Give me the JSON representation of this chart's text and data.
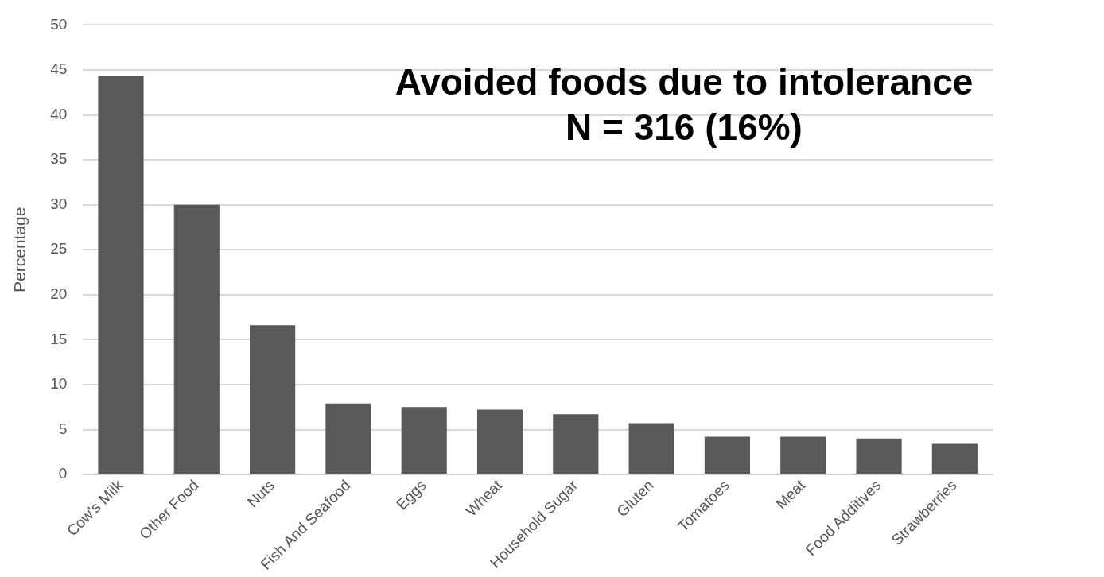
{
  "chart_data": {
    "type": "bar",
    "title": "Avoided foods due to intolerance",
    "subtitle": "N = 316 (16%)",
    "ylabel": "Percentage",
    "categories": [
      "Cow's Milk",
      "Other Food",
      "Nuts",
      "Fish And Seafood",
      "Eggs",
      "Wheat",
      "Household Sugar",
      "Gluten",
      "Tomatoes",
      "Meat",
      "Food Additives",
      "Strawberries"
    ],
    "values": [
      44.3,
      30,
      16.6,
      7.9,
      7.5,
      7.2,
      6.7,
      5.7,
      4.2,
      4.2,
      4.0,
      3.4
    ],
    "color": "#595959",
    "ylim": [
      0,
      50
    ],
    "yticks": [
      0,
      5,
      10,
      15,
      20,
      25,
      30,
      35,
      40,
      45,
      50
    ],
    "grid": "y",
    "legend": false
  }
}
